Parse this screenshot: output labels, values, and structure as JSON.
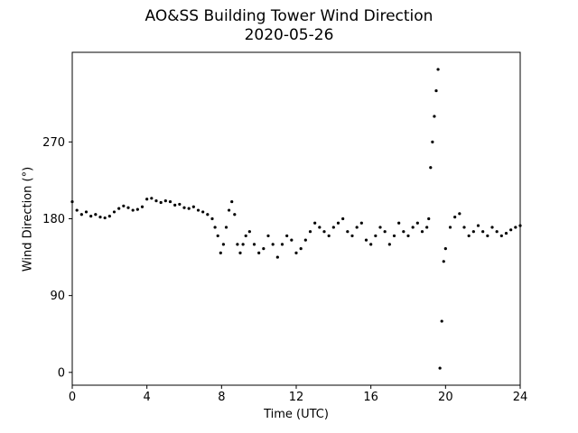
{
  "chart_data": {
    "type": "scatter",
    "title": "AO&SS Building Tower Wind Direction",
    "subtitle": "2020-05-26",
    "xlabel": "Time (UTC)",
    "ylabel": "Wind Direction (°)",
    "xlim": [
      0,
      24
    ],
    "ylim": [
      -15,
      375
    ],
    "xticks": [
      0,
      4,
      8,
      12,
      16,
      20,
      24
    ],
    "yticks": [
      0,
      90,
      180,
      270
    ],
    "grid": false,
    "marker_color": "#000000",
    "series": [
      {
        "x": [
          0.0,
          0.25,
          0.5,
          0.75,
          1.0,
          1.25,
          1.5,
          1.75,
          2.0,
          2.25,
          2.5,
          2.75,
          3.0,
          3.25,
          3.5,
          3.75,
          4.0,
          4.25,
          4.5,
          4.75,
          5.0,
          5.25,
          5.5,
          5.75,
          6.0,
          6.25,
          6.5,
          6.75,
          7.0,
          7.25,
          7.5,
          7.65,
          7.8,
          7.95,
          8.1,
          8.25,
          8.4,
          8.55,
          8.7,
          8.85,
          9.0,
          9.15,
          9.3,
          9.5,
          9.75,
          10.0,
          10.25,
          10.5,
          10.75,
          11.0,
          11.25,
          11.5,
          11.75,
          12.0,
          12.25,
          12.5,
          12.75,
          13.0,
          13.25,
          13.5,
          13.75,
          14.0,
          14.25,
          14.5,
          14.75,
          15.0,
          15.25,
          15.5,
          15.75,
          16.0,
          16.25,
          16.5,
          16.75,
          17.0,
          17.25,
          17.5,
          17.75,
          18.0,
          18.25,
          18.5,
          18.75,
          19.0,
          19.1,
          19.2,
          19.3,
          19.4,
          19.5,
          19.6,
          19.7,
          19.8,
          19.9,
          20.0,
          20.25,
          20.5,
          20.75,
          21.0,
          21.25,
          21.5,
          21.75,
          22.0,
          22.25,
          22.5,
          22.75,
          23.0,
          23.25,
          23.5,
          23.75,
          24.0
        ],
        "y": [
          200,
          190,
          185,
          188,
          183,
          185,
          182,
          181,
          183,
          188,
          192,
          195,
          193,
          190,
          191,
          194,
          203,
          204,
          201,
          199,
          201,
          200,
          196,
          197,
          193,
          192,
          194,
          190,
          188,
          185,
          180,
          170,
          160,
          140,
          150,
          170,
          190,
          200,
          185,
          150,
          140,
          150,
          160,
          165,
          150,
          140,
          145,
          160,
          150,
          135,
          150,
          160,
          155,
          140,
          145,
          155,
          165,
          175,
          170,
          165,
          160,
          170,
          175,
          180,
          165,
          160,
          170,
          175,
          155,
          150,
          160,
          170,
          165,
          150,
          160,
          175,
          165,
          160,
          170,
          175,
          165,
          170,
          180,
          240,
          270,
          300,
          330,
          355,
          5,
          60,
          130,
          145,
          170,
          182,
          186,
          170,
          160,
          165,
          172,
          165,
          160,
          170,
          165,
          160,
          163,
          167,
          170,
          172
        ]
      }
    ]
  }
}
